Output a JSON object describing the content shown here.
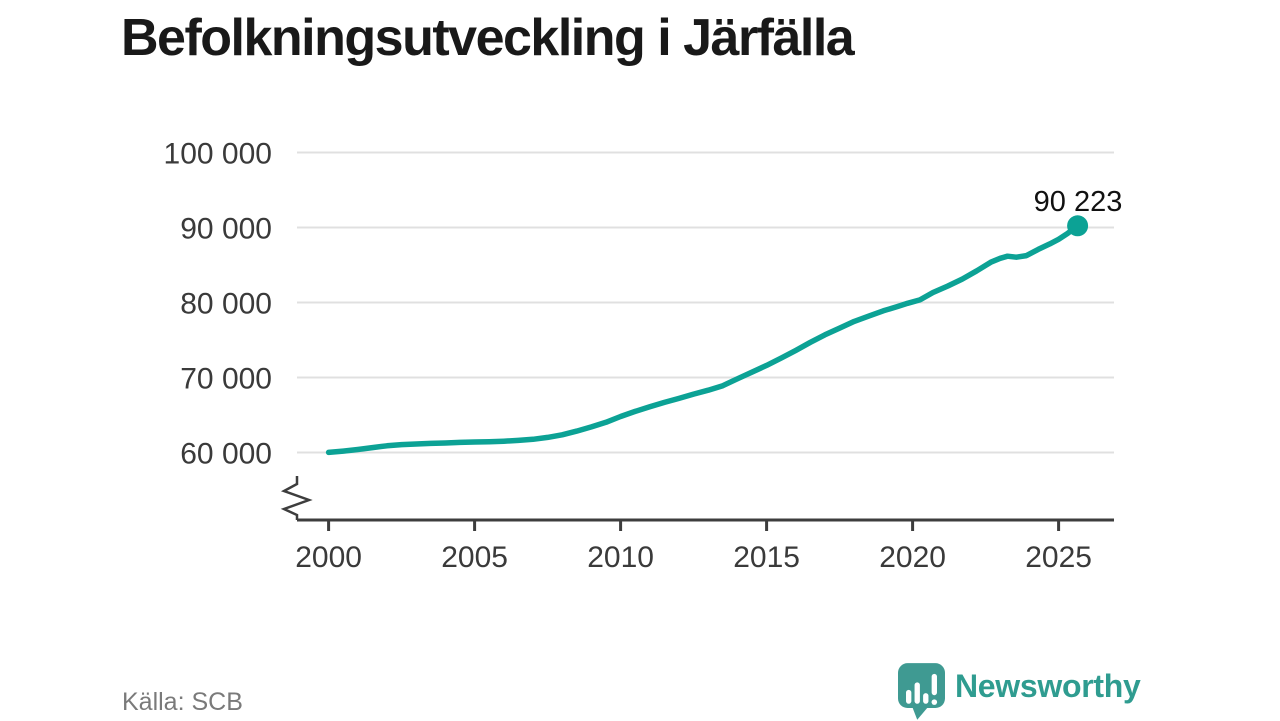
{
  "title": "Befolkningsutveckling i Järfälla",
  "source": "Källa: SCB",
  "branding": {
    "name": "Newsworthy",
    "text_color": "#2f9c90",
    "bubble_color": "#3f9a92",
    "bubble_glyph_color": "#ffffff"
  },
  "colors": {
    "line": "#0ca295",
    "grid": "#e0e0e0",
    "axis": "#3d3d3d",
    "axis_text": "#3a3a3a",
    "title": "#191919",
    "end_label": "#111111",
    "source": "#7a7a7a",
    "background": "#ffffff"
  },
  "chart_data": {
    "type": "line",
    "title": "Befolkningsutveckling i Järfälla",
    "grid": "horizontal",
    "axis_break_at_bottom": true,
    "xlim": [
      1998.9,
      2026.9
    ],
    "ylim_displayed": [
      60000,
      100000
    ],
    "x_ticks": [
      {
        "year": 2000,
        "label": "2000"
      },
      {
        "year": 2005,
        "label": "2005"
      },
      {
        "year": 2010,
        "label": "2010"
      },
      {
        "year": 2015,
        "label": "2015"
      },
      {
        "year": 2020,
        "label": "2020"
      },
      {
        "year": 2025,
        "label": "2025"
      }
    ],
    "y_ticks": [
      {
        "value": 60000,
        "label": "60 000"
      },
      {
        "value": 70000,
        "label": "70 000"
      },
      {
        "value": 80000,
        "label": "80 000"
      },
      {
        "value": 90000,
        "label": "90 000"
      },
      {
        "value": 100000,
        "label": "100 000"
      }
    ],
    "series": [
      {
        "color": "#0ca295",
        "end_label": "90 223",
        "end_value": 90223,
        "points": [
          [
            2000.0,
            60020
          ],
          [
            2000.5,
            60180
          ],
          [
            2001.0,
            60400
          ],
          [
            2001.5,
            60650
          ],
          [
            2002.0,
            60900
          ],
          [
            2002.5,
            61050
          ],
          [
            2003.0,
            61130
          ],
          [
            2003.5,
            61210
          ],
          [
            2004.0,
            61270
          ],
          [
            2004.5,
            61340
          ],
          [
            2005.0,
            61400
          ],
          [
            2005.5,
            61440
          ],
          [
            2006.0,
            61510
          ],
          [
            2006.5,
            61610
          ],
          [
            2007.0,
            61760
          ],
          [
            2007.5,
            62010
          ],
          [
            2008.0,
            62360
          ],
          [
            2008.5,
            62860
          ],
          [
            2009.0,
            63420
          ],
          [
            2009.5,
            64030
          ],
          [
            2010.0,
            64800
          ],
          [
            2010.5,
            65480
          ],
          [
            2011.0,
            66090
          ],
          [
            2011.5,
            66680
          ],
          [
            2012.0,
            67210
          ],
          [
            2012.5,
            67790
          ],
          [
            2013.0,
            68310
          ],
          [
            2013.5,
            68910
          ],
          [
            2014.0,
            69830
          ],
          [
            2014.5,
            70720
          ],
          [
            2015.0,
            71610
          ],
          [
            2015.5,
            72590
          ],
          [
            2016.0,
            73620
          ],
          [
            2016.5,
            74690
          ],
          [
            2017.0,
            75690
          ],
          [
            2017.5,
            76580
          ],
          [
            2018.0,
            77480
          ],
          [
            2018.5,
            78190
          ],
          [
            2019.0,
            78890
          ],
          [
            2019.5,
            79480
          ],
          [
            2019.83,
            79900
          ],
          [
            2020.25,
            80350
          ],
          [
            2020.7,
            81330
          ],
          [
            2021.2,
            82190
          ],
          [
            2021.7,
            83120
          ],
          [
            2022.2,
            84230
          ],
          [
            2022.7,
            85420
          ],
          [
            2023.0,
            85890
          ],
          [
            2023.25,
            86170
          ],
          [
            2023.55,
            86040
          ],
          [
            2023.9,
            86260
          ],
          [
            2024.3,
            87080
          ],
          [
            2024.7,
            87810
          ],
          [
            2025.0,
            88420
          ],
          [
            2025.3,
            89190
          ],
          [
            2025.65,
            90223
          ]
        ]
      }
    ]
  }
}
